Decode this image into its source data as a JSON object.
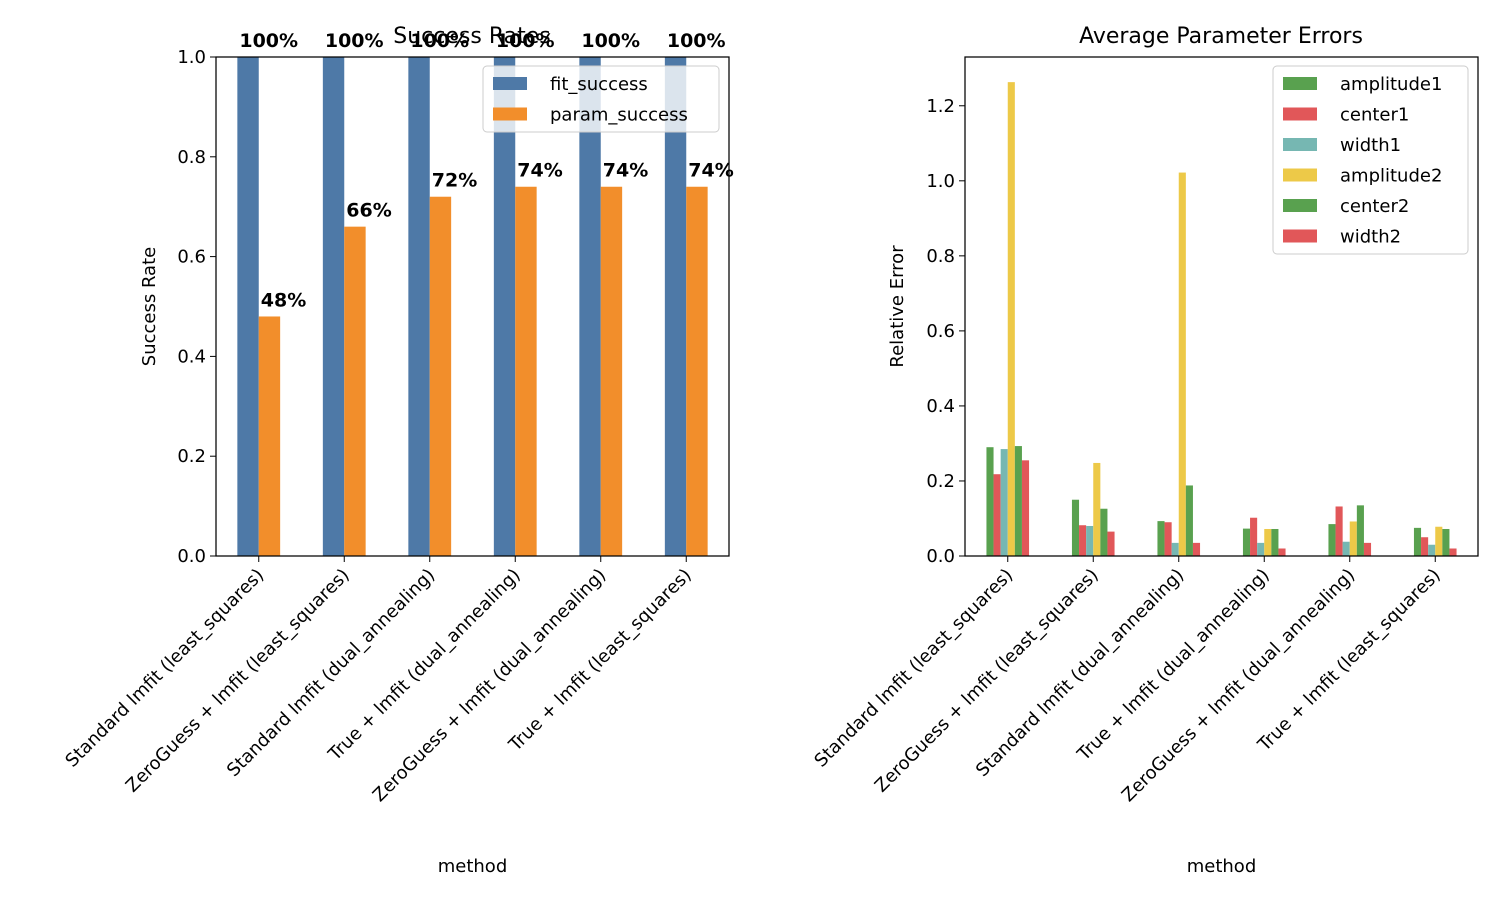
{
  "chart_data": [
    {
      "type": "bar",
      "title": "Success Rates",
      "xlabel": "method",
      "ylabel": "Success Rate",
      "ylim": [
        0,
        1.0
      ],
      "yticks": [
        "0.0",
        "0.2",
        "0.4",
        "0.6",
        "0.8",
        "1.0"
      ],
      "grid": false,
      "legend_placement": "top-right",
      "categories": [
        "Standard lmfit (least_squares)",
        "ZeroGuess + lmfit (least_squares)",
        "Standard lmfit (dual_annealing)",
        "True + lmfit (dual_annealing)",
        "ZeroGuess + lmfit (dual_annealing)",
        "True + lmfit (least_squares)"
      ],
      "series": [
        {
          "name": "fit_success",
          "color": "#4e79a7",
          "values": [
            1.0,
            1.0,
            1.0,
            1.0,
            1.0,
            1.0
          ],
          "labels": [
            "100%",
            "100%",
            "100%",
            "100%",
            "100%",
            "100%"
          ]
        },
        {
          "name": "param_success",
          "color": "#f28e2b",
          "values": [
            0.48,
            0.66,
            0.72,
            0.74,
            0.74,
            0.74
          ],
          "labels": [
            "48%",
            "66%",
            "72%",
            "74%",
            "74%",
            "74%"
          ]
        }
      ]
    },
    {
      "type": "bar",
      "title": "Average Parameter Errors",
      "xlabel": "method",
      "ylabel": "Relative Error",
      "ylim": [
        0,
        1.33
      ],
      "yticks": [
        "0.0",
        "0.2",
        "0.4",
        "0.6",
        "0.8",
        "1.0",
        "1.2"
      ],
      "grid": false,
      "legend_placement": "top-right",
      "categories": [
        "Standard lmfit (least_squares)",
        "ZeroGuess + lmfit (least_squares)",
        "Standard lmfit (dual_annealing)",
        "True + lmfit (dual_annealing)",
        "ZeroGuess + lmfit (dual_annealing)",
        "True + lmfit (least_squares)"
      ],
      "series": [
        {
          "name": "amplitude1",
          "color": "#59a14f",
          "values": [
            0.29,
            0.15,
            0.093,
            0.073,
            0.085,
            0.075
          ]
        },
        {
          "name": "center1",
          "color": "#e15759",
          "values": [
            0.218,
            0.082,
            0.09,
            0.102,
            0.132,
            0.05
          ]
        },
        {
          "name": "width1",
          "color": "#76b7b2",
          "values": [
            0.285,
            0.08,
            0.035,
            0.035,
            0.038,
            0.03
          ]
        },
        {
          "name": "amplitude2",
          "color": "#edc948",
          "values": [
            1.263,
            0.248,
            1.022,
            0.072,
            0.092,
            0.078
          ]
        },
        {
          "name": "center2",
          "color": "#59a14f",
          "values": [
            0.293,
            0.126,
            0.188,
            0.072,
            0.135,
            0.072
          ]
        },
        {
          "name": "width2",
          "color": "#e15759",
          "values": [
            0.255,
            0.065,
            0.035,
            0.02,
            0.035,
            0.02
          ]
        }
      ]
    }
  ]
}
